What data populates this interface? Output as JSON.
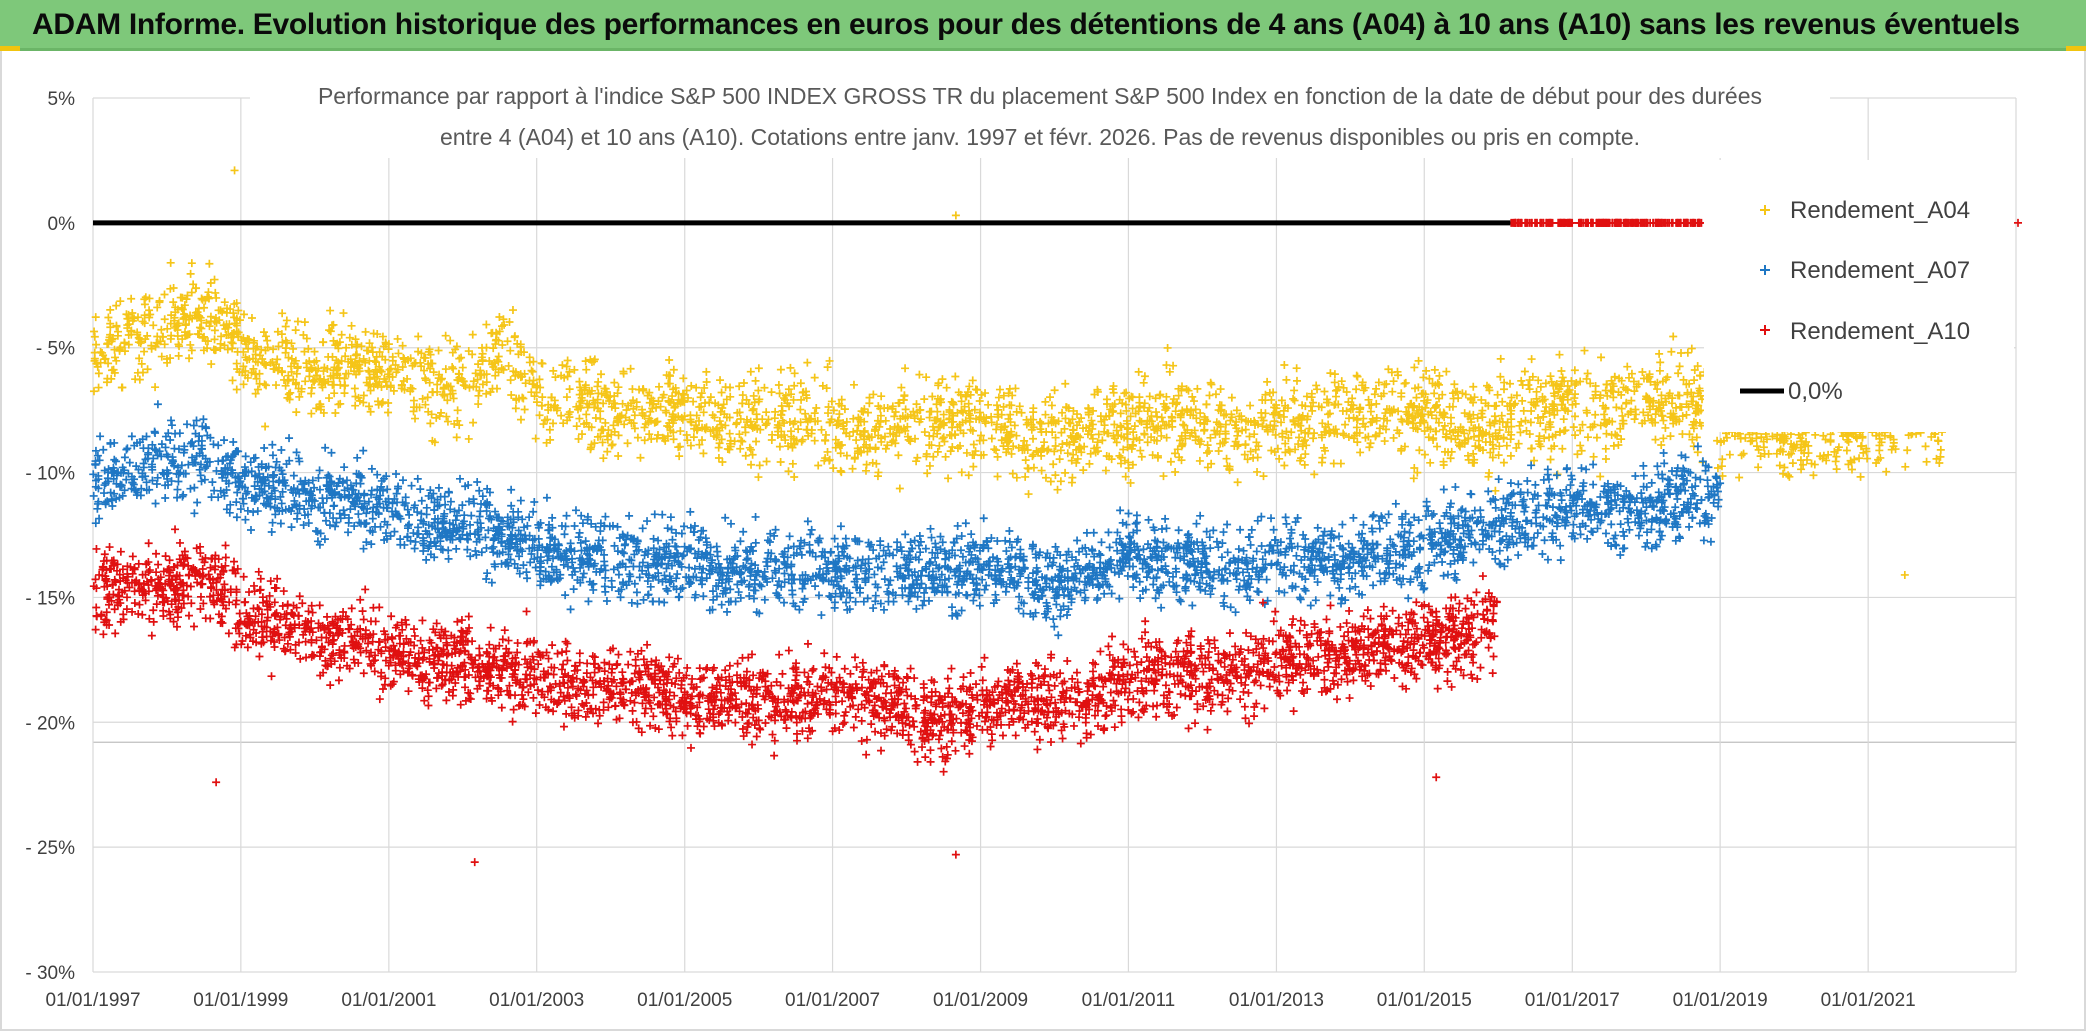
{
  "header": {
    "title": "ADAM Informe. Evolution historique des performances en euros pour des détentions de 4 ans (A04) à 10 ans (A10) sans les revenus éventuels"
  },
  "colors": {
    "header_bg": "#7ec87a",
    "A04": "#f5c518",
    "A07": "#1f77c4",
    "A10": "#e01010",
    "zero_line": "#000000",
    "grid": "#d9d9d9"
  },
  "chart_data": {
    "type": "scatter",
    "title_lines": [
      "Performance par rapport à l'indice S&P 500 INDEX GROSS TR  du placement S&P 500 Index en fonction de la date de début pour des durées",
      "entre 4 (A04) et 10 ans (A10). Cotations entre janv. 1997 et févr. 2026. Pas de revenus disponibles ou pris en compte."
    ],
    "xlabel": "",
    "ylabel": "",
    "x_ticks": [
      "01/01/1997",
      "01/01/1999",
      "01/01/2001",
      "01/01/2003",
      "01/01/2005",
      "01/01/2007",
      "01/01/2009",
      "01/01/2011",
      "01/01/2013",
      "01/01/2015",
      "01/01/2017",
      "01/01/2019",
      "01/01/2021"
    ],
    "xlim": [
      "01/01/1997",
      "01/01/2023"
    ],
    "y_ticks": [
      "5%",
      "0%",
      "- 5%",
      "- 10%",
      "- 15%",
      "- 20%",
      "- 25%",
      "- 30%"
    ],
    "ylim": [
      -30,
      5
    ],
    "grid": true,
    "legend_position": "right",
    "legend": [
      "Rendement_A04",
      "Rendement_A07",
      "Rendement_A10",
      "0,0%"
    ],
    "series": [
      {
        "name": "Rendement_A04",
        "x": [
          "01/01/1997",
          "01/07/1997",
          "01/01/1998",
          "01/07/1998",
          "01/01/1999",
          "01/07/1999",
          "01/01/2000",
          "01/07/2000",
          "01/01/2001",
          "01/07/2001",
          "01/01/2002",
          "01/07/2002",
          "01/01/2003",
          "01/07/2003",
          "01/01/2004",
          "01/07/2004",
          "01/01/2005",
          "01/07/2005",
          "01/01/2006",
          "01/07/2006",
          "01/01/2007",
          "01/07/2007",
          "01/01/2008",
          "01/07/2008",
          "01/01/2009",
          "01/07/2009",
          "01/01/2010",
          "01/07/2010",
          "01/01/2011",
          "01/07/2011",
          "01/01/2012",
          "01/07/2012",
          "01/01/2013",
          "01/07/2013",
          "01/01/2014",
          "01/07/2014",
          "01/01/2015",
          "01/07/2015",
          "01/01/2016",
          "01/07/2016",
          "01/01/2017",
          "01/07/2017",
          "01/01/2018",
          "01/07/2018",
          "01/01/2019",
          "01/07/2019",
          "01/01/2020",
          "01/07/2020",
          "01/01/2021",
          "01/07/2021",
          "01/01/2022"
        ],
        "y": [
          -5.5,
          -4.5,
          -4.0,
          -3.5,
          -5.0,
          -5.5,
          -6.0,
          -5.5,
          -6.0,
          -6.5,
          -6.5,
          -5.0,
          -7.0,
          -7.0,
          -7.5,
          -7.5,
          -7.5,
          -8.0,
          -8.0,
          -8.0,
          -8.0,
          -8.5,
          -8.0,
          -8.0,
          -8.0,
          -8.5,
          -8.5,
          -8.5,
          -8.0,
          -8.0,
          -8.0,
          -8.5,
          -8.0,
          -8.0,
          -8.0,
          -7.5,
          -7.5,
          -8.0,
          -8.0,
          -7.5,
          -7.5,
          -7.5,
          -7.0,
          -7.0,
          -8.0,
          -8.0,
          -8.5,
          -8.5,
          -8.0,
          -8.0,
          -8.0
        ]
      },
      {
        "name": "Rendement_A07",
        "x": [
          "01/01/1997",
          "01/07/1997",
          "01/01/1998",
          "01/07/1998",
          "01/01/1999",
          "01/07/1999",
          "01/01/2000",
          "01/07/2000",
          "01/01/2001",
          "01/07/2001",
          "01/01/2002",
          "01/07/2002",
          "01/01/2003",
          "01/07/2003",
          "01/01/2004",
          "01/07/2004",
          "01/01/2005",
          "01/07/2005",
          "01/01/2006",
          "01/07/2006",
          "01/01/2007",
          "01/07/2007",
          "01/01/2008",
          "01/07/2008",
          "01/01/2009",
          "01/07/2009",
          "01/01/2010",
          "01/07/2010",
          "01/01/2011",
          "01/07/2011",
          "01/01/2012",
          "01/07/2012",
          "01/01/2013",
          "01/07/2013",
          "01/01/2014",
          "01/07/2014",
          "01/01/2015",
          "01/07/2015",
          "01/01/2016",
          "01/07/2016",
          "01/01/2017",
          "01/07/2017",
          "01/01/2018",
          "01/07/2018",
          "01/01/2019"
        ],
        "y": [
          -10.5,
          -10.0,
          -9.5,
          -9.5,
          -10.5,
          -10.5,
          -11.0,
          -11.0,
          -11.5,
          -12.0,
          -12.0,
          -12.5,
          -13.0,
          -13.5,
          -13.5,
          -13.5,
          -13.5,
          -14.0,
          -14.0,
          -14.0,
          -14.0,
          -14.0,
          -14.0,
          -14.0,
          -14.0,
          -14.0,
          -14.5,
          -14.0,
          -13.5,
          -13.5,
          -13.5,
          -14.0,
          -13.5,
          -13.5,
          -13.5,
          -13.0,
          -13.0,
          -12.5,
          -12.0,
          -11.5,
          -11.5,
          -11.5,
          -11.5,
          -11.0,
          -11.0
        ]
      },
      {
        "name": "Rendement_A10",
        "x": [
          "01/01/1997",
          "01/07/1997",
          "01/01/1998",
          "01/07/1998",
          "01/01/1999",
          "01/07/1999",
          "01/01/2000",
          "01/07/2000",
          "01/01/2001",
          "01/07/2001",
          "01/01/2002",
          "01/07/2002",
          "01/01/2003",
          "01/07/2003",
          "01/01/2004",
          "01/07/2004",
          "01/01/2005",
          "01/07/2005",
          "01/01/2006",
          "01/07/2006",
          "01/01/2007",
          "01/07/2007",
          "01/01/2008",
          "01/07/2008",
          "01/01/2009",
          "01/07/2009",
          "01/01/2010",
          "01/07/2010",
          "01/01/2011",
          "01/07/2011",
          "01/01/2012",
          "01/07/2012",
          "01/01/2013",
          "01/07/2013",
          "01/01/2014",
          "01/07/2014",
          "01/01/2015",
          "01/07/2015",
          "01/01/2016"
        ],
        "y": [
          -15.0,
          -14.5,
          -14.5,
          -14.0,
          -15.5,
          -16.0,
          -16.5,
          -16.5,
          -17.0,
          -17.5,
          -17.5,
          -18.0,
          -18.0,
          -18.5,
          -18.5,
          -18.5,
          -19.0,
          -19.0,
          -19.0,
          -19.0,
          -19.0,
          -19.0,
          -19.5,
          -20.0,
          -19.5,
          -19.0,
          -19.0,
          -19.0,
          -18.5,
          -18.0,
          -18.0,
          -18.0,
          -17.5,
          -17.5,
          -17.5,
          -17.0,
          -17.0,
          -16.5,
          -16.0
        ]
      },
      {
        "name": "0,0%",
        "x": [
          "01/01/1997",
          "01/03/2016"
        ],
        "y": [
          0,
          0
        ]
      }
    ],
    "outliers": [
      {
        "series": "Rendement_A04",
        "x": "01/12/1998",
        "y": 2.1
      },
      {
        "series": "Rendement_A04",
        "x": "01/09/2008",
        "y": 0.3
      },
      {
        "series": "Rendement_A04",
        "x": "01/07/2021",
        "y": -14.1
      },
      {
        "series": "Rendement_A10",
        "x": "01/09/1998",
        "y": -22.4
      },
      {
        "series": "Rendement_A10",
        "x": "01/03/2002",
        "y": -25.6
      },
      {
        "series": "Rendement_A10",
        "x": "01/09/2008",
        "y": -25.3
      },
      {
        "series": "Rendement_A10",
        "x": "01/03/2015",
        "y": -22.2
      }
    ],
    "A10_at_zero_range": [
      "01/03/2016",
      "01/10/2018"
    ]
  }
}
